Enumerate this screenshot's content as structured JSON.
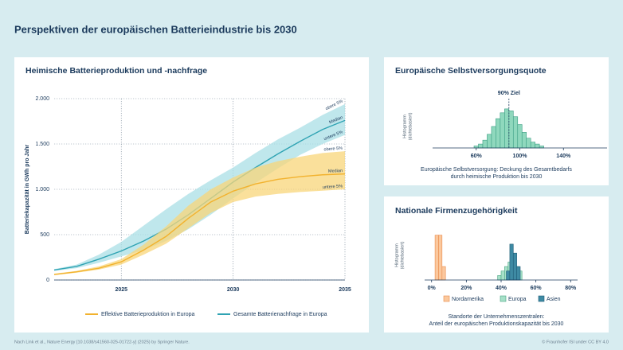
{
  "title": "Perspektiven der europäischen Batterieindustrie bis 2030",
  "footer": {
    "source": "Nach Link et al., Nature Energy [10.1038/s41560-025-01722-y] (2025) by Springer Nature.",
    "credit": "© Fraunhofer ISI under CC BY 4.0"
  },
  "chart_data": [
    {
      "type": "line",
      "title": "Heimische Batterieproduktion und -nachfrage",
      "ylabel": "Batteriekapazität in GWh pro Jahr",
      "x": [
        2022,
        2023,
        2024,
        2025,
        2026,
        2027,
        2028,
        2029,
        2030,
        2031,
        2032,
        2033,
        2034,
        2035
      ],
      "xlim": [
        2022,
        2035
      ],
      "xticks": [
        2025,
        2030,
        2035
      ],
      "ylim": [
        0,
        2000
      ],
      "yticks": [
        0,
        500,
        {
          "value": 1000,
          "label": "1.000"
        },
        {
          "value": 1500,
          "label": "1.500"
        },
        {
          "value": 2000,
          "label": "2.000"
        }
      ],
      "grid": true,
      "legend": "bottom",
      "series": [
        {
          "name": "Effektive Batterieproduktion in Europa",
          "color": "#f2b22e",
          "band_color": "#f8d57a",
          "values": [
            60,
            90,
            130,
            200,
            330,
            480,
            680,
            860,
            980,
            1060,
            1110,
            1140,
            1160,
            1170
          ],
          "upper": [
            70,
            100,
            150,
            230,
            390,
            590,
            820,
            1000,
            1130,
            1240,
            1310,
            1360,
            1400,
            1420
          ],
          "lower": [
            55,
            80,
            115,
            170,
            280,
            400,
            570,
            740,
            860,
            920,
            950,
            970,
            985,
            1000
          ],
          "labels": {
            "upper": "obere 5%",
            "median": "Median",
            "lower": "untere 5%"
          }
        },
        {
          "name": "Gesamte Batterienachfrage in Europa",
          "color": "#2fa3b3",
          "band_color": "#aadfe6",
          "values": [
            110,
            150,
            230,
            320,
            430,
            560,
            720,
            900,
            1080,
            1240,
            1390,
            1530,
            1660,
            1760
          ],
          "upper": [
            120,
            170,
            280,
            420,
            600,
            780,
            950,
            1100,
            1240,
            1400,
            1550,
            1680,
            1820,
            1940
          ],
          "lower": [
            100,
            130,
            190,
            260,
            330,
            430,
            560,
            720,
            900,
            1070,
            1230,
            1380,
            1500,
            1600
          ],
          "labels": {
            "upper": "obere 5%",
            "median": "Median",
            "lower": "untere 5%"
          }
        }
      ]
    },
    {
      "type": "histogram",
      "title": "Europäische Selbstversorgungsquote",
      "ylabel": [
        "Histogramm",
        "(dichtebasiert)"
      ],
      "xlabel": [
        "Europäische Selbstversorgung: Deckung des Gesamtbedarfs",
        "durch heimische Produktion bis 2030"
      ],
      "bins": [
        58,
        62,
        66,
        70,
        74,
        78,
        82,
        86,
        90,
        94,
        98,
        102,
        106,
        110,
        114,
        118,
        122
      ],
      "values": [
        1,
        2,
        4,
        7,
        11,
        15,
        18,
        20,
        19,
        16,
        12,
        8,
        5,
        3,
        2,
        1
      ],
      "color": "#8fd8bd",
      "edge_color": "#3d9f84",
      "xlim": [
        20,
        180
      ],
      "xticks": [
        {
          "value": 60,
          "label": "60%"
        },
        {
          "value": 100,
          "label": "100%"
        },
        {
          "value": 140,
          "label": "140%"
        }
      ],
      "ylim": [
        0,
        22
      ],
      "target": {
        "value": 90,
        "label": "90% Ziel"
      }
    },
    {
      "type": "histogram",
      "title": "Nationale Firmenzugehörigkeit",
      "ylabel": [
        "Histogramm",
        "(dichtebasiert)"
      ],
      "xlabel": [
        "Standorte der Unternehmenszentralen:",
        "Anteil der europäischen Produktionskapazität bis 2030"
      ],
      "xlim": [
        -4,
        84
      ],
      "xticks": [
        {
          "value": 0,
          "label": "0%"
        },
        {
          "value": 20,
          "label": "20%"
        },
        {
          "value": 40,
          "label": "40%"
        },
        {
          "value": 60,
          "label": "60%"
        },
        {
          "value": 80,
          "label": "80%"
        }
      ],
      "ylim": [
        0,
        11
      ],
      "legend": "bottom",
      "series": [
        {
          "name": "Nordamerika",
          "color": "#fbc89d",
          "edge_color": "#e88a4a",
          "bins": [
            2,
            4,
            6,
            8
          ],
          "values": [
            10,
            10,
            3
          ]
        },
        {
          "name": "Europa",
          "color": "#a6e0c8",
          "edge_color": "#4aa582",
          "bins": [
            38,
            40,
            42,
            44,
            46,
            48,
            50,
            52
          ],
          "values": [
            1,
            2,
            3,
            4,
            4,
            3,
            2
          ]
        },
        {
          "name": "Asien",
          "color": "#3e8aa3",
          "edge_color": "#1f5e78",
          "bins": [
            43,
            45,
            47,
            49,
            51
          ],
          "values": [
            2,
            8,
            6,
            3
          ]
        }
      ]
    }
  ]
}
